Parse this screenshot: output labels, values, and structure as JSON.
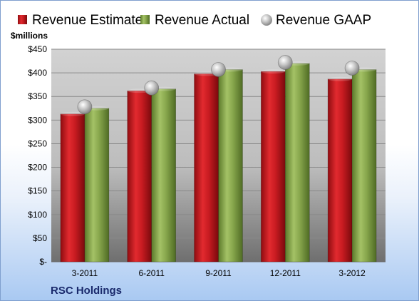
{
  "chart_data": {
    "type": "bar",
    "title": "",
    "ylabel": "$millions",
    "xlabel": "",
    "company": "RSC Holdings",
    "categories": [
      "3-2011",
      "6-2011",
      "9-2011",
      "12-2011",
      "3-2012"
    ],
    "yticks": [
      "$-",
      "$50",
      "$100",
      "$150",
      "$200",
      "$250",
      "$300",
      "$350",
      "$400",
      "$450"
    ],
    "ylim": [
      0,
      450
    ],
    "grid": true,
    "legend_position": "top",
    "series": [
      {
        "name": "Revenue Estimate",
        "style": "bar",
        "color": "#c0151b",
        "values": [
          313,
          362,
          398,
          403,
          387
        ]
      },
      {
        "name": "Revenue Actual",
        "style": "bar",
        "color": "#7f9f45",
        "values": [
          325,
          366,
          407,
          420,
          407
        ]
      },
      {
        "name": "Revenue GAAP",
        "style": "marker",
        "color": "#b8b8b8",
        "values": [
          328,
          368,
          407,
          422,
          410
        ]
      }
    ]
  }
}
